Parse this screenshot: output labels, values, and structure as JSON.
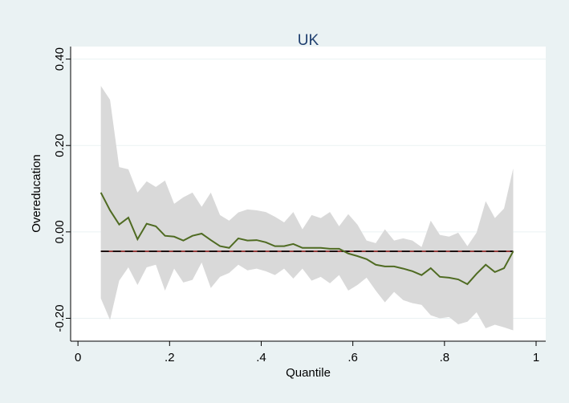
{
  "chart_data": {
    "type": "line",
    "title": "UK",
    "x_label": "Quantile",
    "y_label": "Overeducation",
    "x": [
      0.05,
      0.07,
      0.09,
      0.11,
      0.13,
      0.15,
      0.17,
      0.19,
      0.21,
      0.23,
      0.25,
      0.27,
      0.29,
      0.31,
      0.33,
      0.35,
      0.37,
      0.39,
      0.41,
      0.43,
      0.45,
      0.47,
      0.49,
      0.51,
      0.53,
      0.55,
      0.57,
      0.59,
      0.61,
      0.63,
      0.65,
      0.67,
      0.69,
      0.71,
      0.73,
      0.75,
      0.77,
      0.79,
      0.81,
      0.83,
      0.85,
      0.87,
      0.89,
      0.91,
      0.93,
      0.95
    ],
    "line": {
      "color": "#4f6b22",
      "values": [
        0.091,
        0.05,
        0.017,
        0.033,
        -0.017,
        0.019,
        0.013,
        -0.009,
        -0.011,
        -0.02,
        -0.009,
        -0.004,
        -0.019,
        -0.033,
        -0.037,
        -0.015,
        -0.02,
        -0.019,
        -0.024,
        -0.033,
        -0.033,
        -0.028,
        -0.037,
        -0.037,
        -0.037,
        -0.039,
        -0.039,
        -0.05,
        -0.056,
        -0.063,
        -0.076,
        -0.08,
        -0.08,
        -0.085,
        -0.091,
        -0.1,
        -0.084,
        -0.104,
        -0.106,
        -0.11,
        -0.121,
        -0.097,
        -0.076,
        -0.093,
        -0.084,
        -0.045
      ]
    },
    "band": {
      "color": "#d9d9d9",
      "upper": [
        0.338,
        0.306,
        0.15,
        0.145,
        0.091,
        0.117,
        0.104,
        0.119,
        0.065,
        0.08,
        0.091,
        0.058,
        0.091,
        0.039,
        0.026,
        0.045,
        0.052,
        0.05,
        0.046,
        0.035,
        0.022,
        0.046,
        0.006,
        0.039,
        0.032,
        0.046,
        0.013,
        0.041,
        0.017,
        -0.02,
        -0.026,
        0.006,
        -0.02,
        -0.015,
        -0.02,
        -0.035,
        0.026,
        -0.007,
        -0.011,
        -0.002,
        -0.033,
        -0.002,
        0.071,
        0.032,
        0.054,
        0.147
      ],
      "lower": [
        -0.154,
        -0.204,
        -0.113,
        -0.082,
        -0.123,
        -0.082,
        -0.076,
        -0.136,
        -0.085,
        -0.117,
        -0.111,
        -0.071,
        -0.13,
        -0.104,
        -0.095,
        -0.076,
        -0.089,
        -0.085,
        -0.091,
        -0.1,
        -0.085,
        -0.108,
        -0.085,
        -0.113,
        -0.104,
        -0.119,
        -0.1,
        -0.136,
        -0.123,
        -0.106,
        -0.136,
        -0.163,
        -0.139,
        -0.158,
        -0.165,
        -0.169,
        -0.193,
        -0.2,
        -0.197,
        -0.214,
        -0.208,
        -0.186,
        -0.223,
        -0.215,
        -0.221,
        -0.228
      ]
    },
    "hlines": [
      {
        "value": -0.045,
        "color": "#8b1a1a"
      },
      {
        "value": -0.045,
        "color": "#000000"
      }
    ],
    "xlim": [
      -0.016,
      1.021
    ],
    "ylim": [
      -0.253,
      0.429
    ],
    "xticks": [
      0,
      {
        "value": 0.2,
        "label": ".2"
      },
      {
        "value": 0.4,
        "label": ".4"
      },
      {
        "value": 0.6,
        "label": ".6"
      },
      {
        "value": 0.8,
        "label": ".8"
      },
      1
    ],
    "yticks": [
      {
        "value": -0.2,
        "label": "-0.20"
      },
      {
        "value": 0,
        "label": "0.00"
      },
      {
        "value": 0.2,
        "label": "0.20"
      },
      {
        "value": 0.4,
        "label": "0.40"
      }
    ],
    "grid": true
  }
}
